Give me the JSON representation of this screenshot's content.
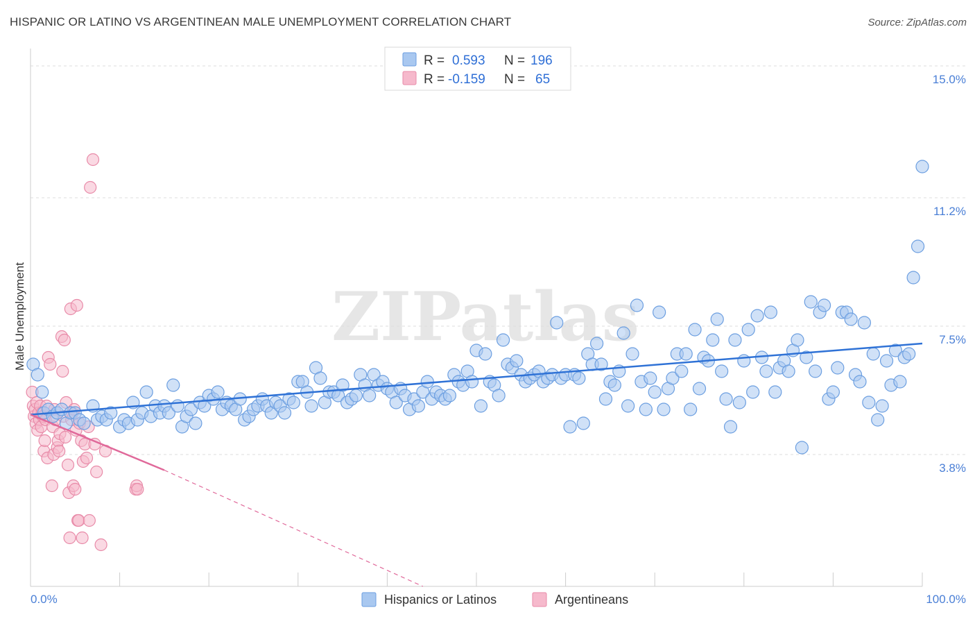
{
  "title": "HISPANIC OR LATINO VS ARGENTINEAN MALE UNEMPLOYMENT CORRELATION CHART",
  "source": "Source: ZipAtlas.com",
  "watermark": "ZIPatlas",
  "colors": {
    "blue_fill": "#a9c8f0",
    "blue_stroke": "#6b9ee0",
    "blue_line": "#2f72d6",
    "pink_fill": "#f6b9cc",
    "pink_stroke": "#e88aa8",
    "pink_line": "#e0699a",
    "axis_text": "#4a7fd6"
  },
  "legend_top": {
    "rows": [
      {
        "r_label": "R =",
        "r_value": "0.593",
        "n_label": "N =",
        "n_value": "196"
      },
      {
        "r_label": "R =",
        "r_value": "-0.159",
        "n_label": "N =",
        "n_value": "65"
      }
    ]
  },
  "legend_bottom": {
    "items": [
      {
        "label": "Hispanics or Latinos"
      },
      {
        "label": "Argentineans"
      }
    ]
  },
  "chart_data": {
    "type": "scatter",
    "title": "HISPANIC OR LATINO VS ARGENTINEAN MALE UNEMPLOYMENT CORRELATION CHART",
    "ylabel": "Male Unemployment",
    "xlabel": "",
    "xlim": [
      0,
      100
    ],
    "ylim": [
      0,
      15.5
    ],
    "x_tick_labels": [
      "0.0%",
      "100.0%"
    ],
    "y_ticks": [
      3.8,
      7.5,
      11.2,
      15.0
    ],
    "y_tick_labels": [
      "3.8%",
      "7.5%",
      "11.2%",
      "15.0%"
    ],
    "series": [
      {
        "name": "Hispanics or Latinos",
        "R": 0.593,
        "N": 196,
        "trend": {
          "x0": 0,
          "y0": 4.95,
          "x1": 100,
          "y1": 7.0
        },
        "points": [
          [
            0.3,
            6.4
          ],
          [
            0.8,
            6.1
          ],
          [
            1.3,
            5.6
          ],
          [
            1.5,
            5.0
          ],
          [
            2.0,
            5.1
          ],
          [
            2.5,
            4.9
          ],
          [
            3.0,
            5.0
          ],
          [
            3.5,
            5.1
          ],
          [
            4.0,
            4.7
          ],
          [
            4.5,
            5.0
          ],
          [
            5.0,
            5.0
          ],
          [
            5.5,
            4.8
          ],
          [
            6.0,
            4.7
          ],
          [
            7.0,
            5.2
          ],
          [
            7.5,
            4.8
          ],
          [
            8.0,
            4.9
          ],
          [
            8.5,
            4.8
          ],
          [
            9.0,
            5.0
          ],
          [
            10.0,
            4.6
          ],
          [
            10.5,
            4.8
          ],
          [
            11.0,
            4.7
          ],
          [
            11.5,
            5.3
          ],
          [
            12.0,
            4.8
          ],
          [
            12.5,
            5.0
          ],
          [
            13.0,
            5.6
          ],
          [
            13.5,
            4.9
          ],
          [
            14.0,
            5.2
          ],
          [
            14.5,
            5.0
          ],
          [
            15.0,
            5.2
          ],
          [
            15.5,
            5.0
          ],
          [
            16.0,
            5.8
          ],
          [
            16.5,
            5.2
          ],
          [
            17.0,
            4.6
          ],
          [
            17.5,
            4.9
          ],
          [
            18.0,
            5.1
          ],
          [
            18.5,
            4.7
          ],
          [
            19.0,
            5.3
          ],
          [
            19.5,
            5.2
          ],
          [
            20.0,
            5.5
          ],
          [
            20.5,
            5.4
          ],
          [
            21.0,
            5.6
          ],
          [
            21.5,
            5.1
          ],
          [
            22.0,
            5.3
          ],
          [
            22.5,
            5.2
          ],
          [
            23.0,
            5.1
          ],
          [
            23.5,
            5.4
          ],
          [
            24.0,
            4.8
          ],
          [
            24.5,
            4.9
          ],
          [
            25.0,
            5.1
          ],
          [
            25.5,
            5.2
          ],
          [
            26.0,
            5.4
          ],
          [
            26.5,
            5.2
          ],
          [
            27.0,
            5.0
          ],
          [
            27.5,
            5.3
          ],
          [
            28.0,
            5.2
          ],
          [
            28.5,
            5.0
          ],
          [
            29.0,
            5.4
          ],
          [
            29.5,
            5.3
          ],
          [
            30.0,
            5.9
          ],
          [
            30.5,
            5.9
          ],
          [
            31.0,
            5.6
          ],
          [
            31.5,
            5.2
          ],
          [
            32.0,
            6.3
          ],
          [
            32.5,
            6.0
          ],
          [
            33.0,
            5.3
          ],
          [
            33.5,
            5.6
          ],
          [
            34.0,
            5.6
          ],
          [
            34.5,
            5.5
          ],
          [
            35.0,
            5.8
          ],
          [
            35.5,
            5.3
          ],
          [
            36.0,
            5.4
          ],
          [
            36.5,
            5.5
          ],
          [
            37.0,
            6.1
          ],
          [
            37.5,
            5.8
          ],
          [
            38.0,
            5.5
          ],
          [
            38.5,
            6.1
          ],
          [
            39.0,
            5.8
          ],
          [
            39.5,
            5.9
          ],
          [
            40.0,
            5.7
          ],
          [
            40.5,
            5.6
          ],
          [
            41.0,
            5.3
          ],
          [
            41.5,
            5.7
          ],
          [
            42.0,
            5.5
          ],
          [
            42.5,
            5.1
          ],
          [
            43.0,
            5.4
          ],
          [
            43.5,
            5.2
          ],
          [
            44.0,
            5.6
          ],
          [
            44.5,
            5.9
          ],
          [
            45.0,
            5.4
          ],
          [
            45.5,
            5.6
          ],
          [
            46.0,
            5.5
          ],
          [
            46.5,
            5.4
          ],
          [
            47.0,
            5.5
          ],
          [
            47.5,
            6.1
          ],
          [
            48.0,
            5.9
          ],
          [
            48.5,
            5.8
          ],
          [
            49.0,
            6.2
          ],
          [
            49.5,
            5.9
          ],
          [
            50.0,
            6.8
          ],
          [
            50.5,
            5.2
          ],
          [
            51.0,
            6.7
          ],
          [
            51.5,
            5.9
          ],
          [
            52.0,
            5.8
          ],
          [
            52.5,
            5.5
          ],
          [
            53.0,
            7.1
          ],
          [
            53.5,
            6.4
          ],
          [
            54.0,
            6.3
          ],
          [
            54.5,
            6.5
          ],
          [
            55.0,
            6.1
          ],
          [
            55.5,
            5.9
          ],
          [
            56.0,
            6.0
          ],
          [
            56.5,
            6.1
          ],
          [
            57.0,
            6.2
          ],
          [
            57.5,
            5.9
          ],
          [
            58.0,
            6.0
          ],
          [
            58.5,
            6.1
          ],
          [
            59.0,
            7.6
          ],
          [
            59.5,
            6.0
          ],
          [
            60.0,
            6.1
          ],
          [
            60.5,
            4.6
          ],
          [
            61.0,
            6.1
          ],
          [
            61.5,
            6.0
          ],
          [
            62.0,
            4.7
          ],
          [
            62.5,
            6.7
          ],
          [
            63.0,
            6.4
          ],
          [
            63.5,
            7.0
          ],
          [
            64.0,
            6.4
          ],
          [
            64.5,
            5.4
          ],
          [
            65.0,
            5.9
          ],
          [
            65.5,
            5.8
          ],
          [
            66.0,
            6.2
          ],
          [
            66.5,
            7.3
          ],
          [
            67.0,
            5.2
          ],
          [
            67.5,
            6.7
          ],
          [
            68.0,
            8.1
          ],
          [
            68.5,
            5.9
          ],
          [
            69.0,
            5.1
          ],
          [
            69.5,
            6.0
          ],
          [
            70.0,
            5.6
          ],
          [
            70.5,
            7.9
          ],
          [
            71.0,
            5.1
          ],
          [
            71.5,
            5.7
          ],
          [
            72.0,
            6.0
          ],
          [
            72.5,
            6.7
          ],
          [
            73.0,
            6.2
          ],
          [
            73.5,
            6.7
          ],
          [
            74.0,
            5.1
          ],
          [
            74.5,
            7.4
          ],
          [
            75.0,
            5.7
          ],
          [
            75.5,
            6.6
          ],
          [
            76.0,
            6.5
          ],
          [
            76.5,
            7.1
          ],
          [
            77.0,
            7.7
          ],
          [
            77.5,
            6.2
          ],
          [
            78.0,
            5.4
          ],
          [
            78.5,
            4.6
          ],
          [
            79.0,
            7.1
          ],
          [
            79.5,
            5.3
          ],
          [
            80.0,
            6.5
          ],
          [
            80.5,
            7.4
          ],
          [
            81.0,
            5.6
          ],
          [
            81.5,
            7.8
          ],
          [
            82.0,
            6.6
          ],
          [
            82.5,
            6.2
          ],
          [
            83.0,
            7.9
          ],
          [
            83.5,
            5.6
          ],
          [
            84.0,
            6.3
          ],
          [
            84.5,
            6.5
          ],
          [
            85.0,
            6.2
          ],
          [
            85.5,
            6.8
          ],
          [
            86.0,
            7.1
          ],
          [
            86.5,
            4.0
          ],
          [
            87.0,
            6.6
          ],
          [
            87.5,
            8.2
          ],
          [
            88.0,
            6.2
          ],
          [
            88.5,
            7.9
          ],
          [
            89.0,
            8.1
          ],
          [
            89.5,
            5.4
          ],
          [
            90.0,
            5.6
          ],
          [
            90.5,
            6.3
          ],
          [
            91.0,
            7.9
          ],
          [
            91.5,
            7.9
          ],
          [
            92.0,
            7.7
          ],
          [
            92.5,
            6.1
          ],
          [
            93.0,
            5.9
          ],
          [
            93.5,
            7.6
          ],
          [
            94.0,
            5.3
          ],
          [
            94.5,
            6.7
          ],
          [
            95.0,
            4.8
          ],
          [
            95.5,
            5.2
          ],
          [
            96.0,
            6.5
          ],
          [
            96.5,
            5.8
          ],
          [
            97.0,
            6.8
          ],
          [
            97.5,
            5.9
          ],
          [
            98.0,
            6.6
          ],
          [
            98.5,
            6.7
          ],
          [
            99.0,
            8.9
          ],
          [
            99.5,
            9.8
          ],
          [
            100.0,
            12.1
          ]
        ]
      },
      {
        "name": "Argentineans",
        "R": -0.159,
        "N": 65,
        "trend": {
          "x0": 0,
          "y0": 4.95,
          "x1": 15,
          "y1": 3.35,
          "dash_to_x": 44,
          "dash_to_y": 0
        },
        "points": [
          [
            0.2,
            5.6
          ],
          [
            0.3,
            5.2
          ],
          [
            0.4,
            4.9
          ],
          [
            0.5,
            5.1
          ],
          [
            0.6,
            4.7
          ],
          [
            0.7,
            5.3
          ],
          [
            0.8,
            4.5
          ],
          [
            0.9,
            5.0
          ],
          [
            1.0,
            4.8
          ],
          [
            1.1,
            5.2
          ],
          [
            1.2,
            4.6
          ],
          [
            1.3,
            5.0
          ],
          [
            1.4,
            4.9
          ],
          [
            1.5,
            3.9
          ],
          [
            1.6,
            4.2
          ],
          [
            1.7,
            4.8
          ],
          [
            1.8,
            5.2
          ],
          [
            1.9,
            3.7
          ],
          [
            2.0,
            6.6
          ],
          [
            2.2,
            6.4
          ],
          [
            2.4,
            2.9
          ],
          [
            2.5,
            4.6
          ],
          [
            2.6,
            3.8
          ],
          [
            2.7,
            5.1
          ],
          [
            2.8,
            4.8
          ],
          [
            3.0,
            4.0
          ],
          [
            3.1,
            4.2
          ],
          [
            3.2,
            3.9
          ],
          [
            3.3,
            4.4
          ],
          [
            3.5,
            7.2
          ],
          [
            3.6,
            6.2
          ],
          [
            3.7,
            4.9
          ],
          [
            3.8,
            7.1
          ],
          [
            3.9,
            4.3
          ],
          [
            4.0,
            5.3
          ],
          [
            4.2,
            3.5
          ],
          [
            4.3,
            2.7
          ],
          [
            4.4,
            1.4
          ],
          [
            4.5,
            8.0
          ],
          [
            4.6,
            4.8
          ],
          [
            4.7,
            5.0
          ],
          [
            4.8,
            2.9
          ],
          [
            4.9,
            5.1
          ],
          [
            5.0,
            2.8
          ],
          [
            5.1,
            4.5
          ],
          [
            5.2,
            8.1
          ],
          [
            5.3,
            1.9
          ],
          [
            5.4,
            1.9
          ],
          [
            5.5,
            4.7
          ],
          [
            5.7,
            4.2
          ],
          [
            5.8,
            1.4
          ],
          [
            5.9,
            3.6
          ],
          [
            6.1,
            4.1
          ],
          [
            6.3,
            3.7
          ],
          [
            6.5,
            4.6
          ],
          [
            6.6,
            1.9
          ],
          [
            6.7,
            11.5
          ],
          [
            7.0,
            12.3
          ],
          [
            7.2,
            4.1
          ],
          [
            7.4,
            3.3
          ],
          [
            7.9,
            1.2
          ],
          [
            8.4,
            3.9
          ],
          [
            11.8,
            2.8
          ],
          [
            11.9,
            2.9
          ],
          [
            12.0,
            2.8
          ]
        ]
      }
    ]
  }
}
